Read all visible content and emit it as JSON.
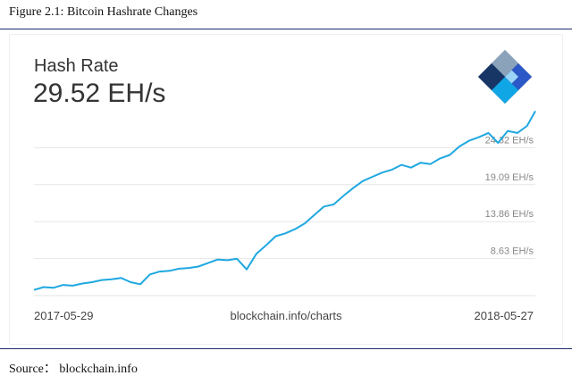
{
  "figure": {
    "caption": "Figure 2.1: Bitcoin Hashrate Changes",
    "source": "Source： blockchain.info"
  },
  "chart": {
    "title": "Hash Rate",
    "current_value": "29.52 EH/s",
    "source_link": "blockchain.info/charts",
    "logo": "blockchain-logo-icon",
    "line_color": "#1fa8e0",
    "grid_color": "#e6e6e6"
  },
  "chart_data": {
    "type": "line",
    "title": "Hash Rate",
    "xlabel": "",
    "ylabel": "",
    "x_start_label": "2017-05-29",
    "x_end_label": "2018-05-27",
    "x_range": [
      "2017-05-29",
      "2018-05-27"
    ],
    "y_ticks": [
      8.63,
      13.86,
      19.09,
      24.32
    ],
    "y_tick_labels": [
      "8.63 EH/s",
      "13.86 EH/s",
      "19.09 EH/s",
      "24.32 EH/s"
    ],
    "ylim": [
      3.4,
      29.55
    ],
    "unit": "EH/s",
    "grid": true,
    "series": [
      {
        "x": [
          "2017-05-29",
          "2017-06-05",
          "2017-06-12",
          "2017-06-19",
          "2017-06-26",
          "2017-07-03",
          "2017-07-10",
          "2017-07-17",
          "2017-07-24",
          "2017-07-31",
          "2017-08-07",
          "2017-08-14",
          "2017-08-21",
          "2017-08-28",
          "2017-09-04",
          "2017-09-11",
          "2017-09-18",
          "2017-09-25",
          "2017-10-02",
          "2017-10-09",
          "2017-10-16",
          "2017-10-23",
          "2017-10-30",
          "2017-11-06",
          "2017-11-13",
          "2017-11-20",
          "2017-11-27",
          "2017-12-04",
          "2017-12-11",
          "2017-12-18",
          "2017-12-25",
          "2018-01-01",
          "2018-01-08",
          "2018-01-15",
          "2018-01-22",
          "2018-01-29",
          "2018-02-05",
          "2018-02-12",
          "2018-02-19",
          "2018-02-26",
          "2018-03-05",
          "2018-03-12",
          "2018-03-19",
          "2018-03-26",
          "2018-04-02",
          "2018-04-09",
          "2018-04-16",
          "2018-04-23",
          "2018-04-30",
          "2018-05-07",
          "2018-05-14",
          "2018-05-21",
          "2018-05-27"
        ],
        "values": [
          4.2,
          4.6,
          4.5,
          4.9,
          4.8,
          5.1,
          5.3,
          5.6,
          5.7,
          5.9,
          5.3,
          5.0,
          6.4,
          6.8,
          6.9,
          7.2,
          7.3,
          7.5,
          8.0,
          8.5,
          8.4,
          8.6,
          7.1,
          9.3,
          10.5,
          11.8,
          12.2,
          12.8,
          13.6,
          14.8,
          16.0,
          16.3,
          17.5,
          18.6,
          19.6,
          20.2,
          20.8,
          21.2,
          21.9,
          21.5,
          22.2,
          22.0,
          22.8,
          23.3,
          24.5,
          25.3,
          25.8,
          26.4,
          25.0,
          26.7,
          26.4,
          27.4,
          29.5
        ]
      }
    ]
  }
}
